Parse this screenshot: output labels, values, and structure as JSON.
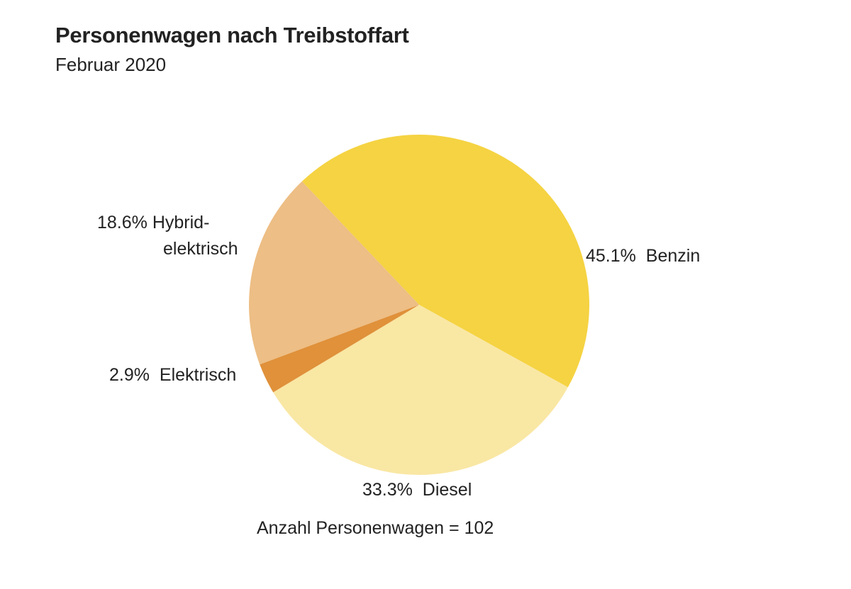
{
  "chart_data": {
    "type": "pie",
    "title": "Personenwagen nach Treibstoffart",
    "subtitle": "Februar 2020",
    "note": "Anzahl Personenwagen = 102",
    "slices": [
      {
        "label": "Benzin",
        "value": 45.1,
        "value_label": "45.1%",
        "color": "#F5D342"
      },
      {
        "label": "Diesel",
        "value": 33.3,
        "value_label": "33.3%",
        "color": "#F9E7A4"
      },
      {
        "label": "Elektrisch",
        "value": 2.9,
        "value_label": "2.9%",
        "color": "#E0913A"
      },
      {
        "label": "Hybrid-elektrisch",
        "label_lines": [
          "Hybrid-",
          "elektrisch"
        ],
        "value": 18.6,
        "value_label": "18.6%",
        "color": "#EDBE85"
      }
    ]
  }
}
